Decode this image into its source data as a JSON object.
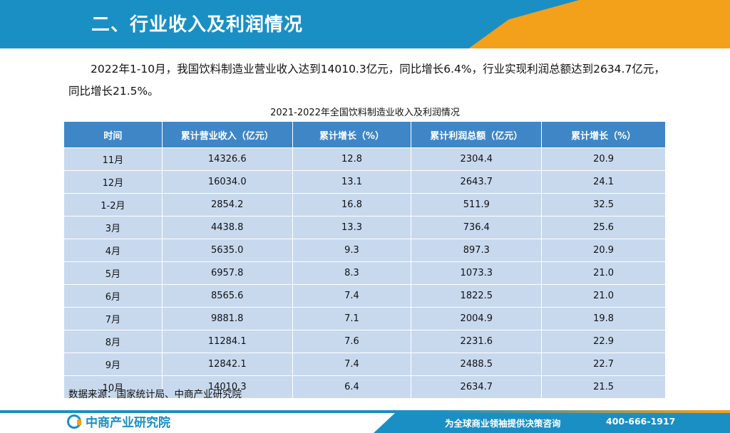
{
  "header": {
    "title": "二、行业收入及利润情况"
  },
  "intro": {
    "text": "2022年1-10月，我国饮料制造业营业收入达到14010.3亿元，同比增长6.4%，行业实现利润总额达到2634.7亿元，同比增长21.5%。"
  },
  "table": {
    "title": "2021-2022年全国饮料制造业收入及利润情况",
    "columns": [
      "时间",
      "累计营业收入（亿元）",
      "累计增长（%）",
      "累计利润总额（亿元）",
      "累计增长（%）"
    ],
    "rows": [
      [
        "11月",
        "14326.6",
        "12.8",
        "2304.4",
        "20.9"
      ],
      [
        "12月",
        "16034.0",
        "13.1",
        "2643.7",
        "24.1"
      ],
      [
        "1-2月",
        "2854.2",
        "16.8",
        "511.9",
        "32.5"
      ],
      [
        "3月",
        "4438.8",
        "13.3",
        "736.4",
        "25.6"
      ],
      [
        "4月",
        "5635.0",
        "9.3",
        "897.3",
        "20.9"
      ],
      [
        "5月",
        "6957.8",
        "8.3",
        "1073.3",
        "21.0"
      ],
      [
        "6月",
        "8565.6",
        "7.4",
        "1822.5",
        "21.0"
      ],
      [
        "7月",
        "9881.8",
        "7.1",
        "2004.9",
        "19.8"
      ],
      [
        "8月",
        "11284.1",
        "7.6",
        "2231.6",
        "22.9"
      ],
      [
        "9月",
        "12842.1",
        "7.4",
        "2488.5",
        "22.7"
      ],
      [
        "10月",
        "14010.3",
        "6.4",
        "2634.7",
        "21.5"
      ]
    ]
  },
  "source": "数据来源：国家统计局、中商产业研究院",
  "footer": {
    "logo_text": "中商产业研究院",
    "slogan": "为全球商业领袖提供决策咨询",
    "phone": "400-666-1917"
  },
  "colors": {
    "primary": "#1a8fc4",
    "accent": "#f3a01b",
    "table_header": "#3f86c7",
    "table_cell": "#c8d9ee"
  }
}
